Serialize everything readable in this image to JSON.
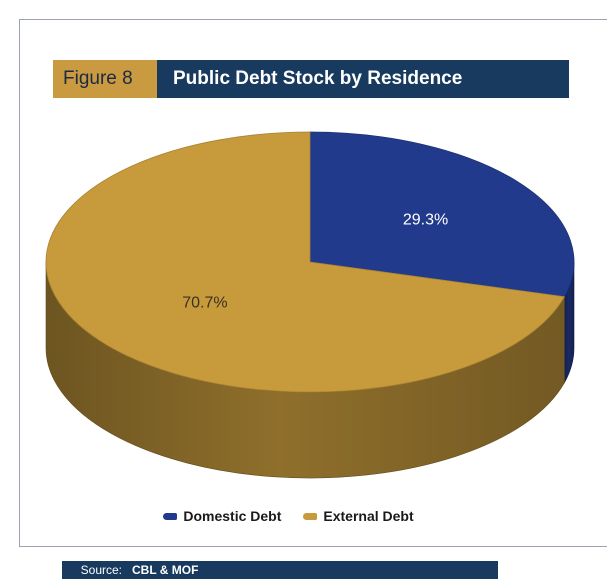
{
  "figure": {
    "label": "Figure 8",
    "title": "Public Debt Stock by Residence"
  },
  "chart_data": {
    "type": "pie",
    "title": "Public Debt Stock by Residence",
    "categories": [
      "Domestic Debt",
      "External Debt"
    ],
    "values": [
      29.3,
      70.7
    ],
    "data_labels": [
      "29.3%",
      "70.7%"
    ],
    "colors": [
      "#223a8c",
      "#c79a3c"
    ],
    "legend_position": "bottom",
    "style": "3d"
  },
  "legend": {
    "items": [
      {
        "label": "Domestic Debt",
        "color": "#223a8c"
      },
      {
        "label": "External Debt",
        "color": "#c79a3c"
      }
    ]
  },
  "source": {
    "label": "Source:",
    "value": "CBL & MOF"
  }
}
